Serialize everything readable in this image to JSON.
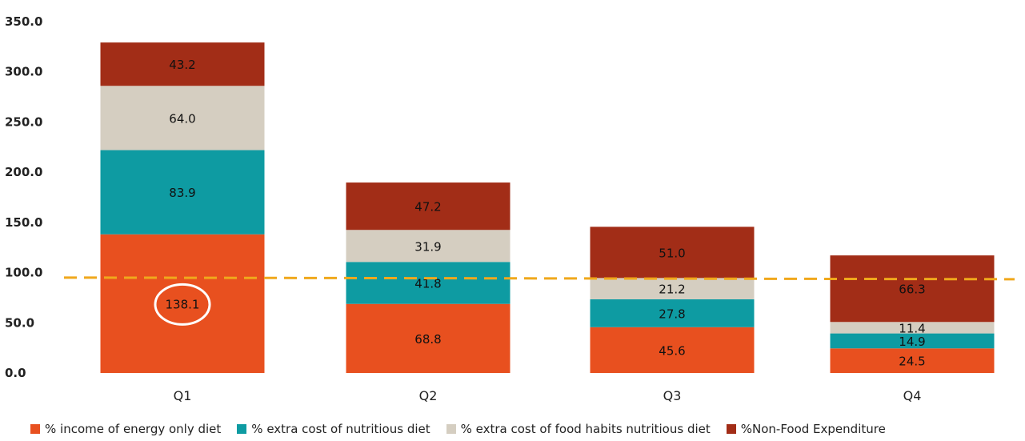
{
  "chart_data": {
    "type": "bar",
    "stacked": true,
    "categories": [
      "Q1",
      "Q2",
      "Q3",
      "Q4"
    ],
    "series": [
      {
        "name": "% income of energy only diet",
        "color": "#E8501F",
        "values": [
          138.1,
          68.8,
          45.6,
          24.5
        ],
        "labels": [
          "138.1",
          "68.8",
          "45.6",
          "24.5"
        ]
      },
      {
        "name": "% extra cost of nutritious diet",
        "color": "#0E9BA2",
        "values": [
          83.9,
          41.8,
          27.8,
          14.9
        ],
        "labels": [
          "83.9",
          "41.8",
          "27.8",
          "14.9"
        ]
      },
      {
        "name": "% extra cost of food habits nutritious diet",
        "color": "#D5CEC1",
        "values": [
          64.0,
          31.9,
          21.2,
          11.4
        ],
        "labels": [
          "64.0",
          "31.9",
          "21.2",
          "11.4"
        ]
      },
      {
        "name": "%Non-Food Expenditure",
        "color": "#A22D17",
        "values": [
          43.2,
          47.2,
          51.0,
          66.3
        ],
        "labels": [
          "43.2",
          "47.2",
          "51.0",
          "66.3"
        ]
      }
    ],
    "yticks": [
      "0.0",
      "50.0",
      "100.0",
      "150.0",
      "200.0",
      "250.0",
      "300.0",
      "350.0"
    ],
    "ylim": [
      0,
      350
    ],
    "reference_line": {
      "value": 95,
      "style": "dashed",
      "color": "#F0A81C"
    },
    "highlight": {
      "series": 0,
      "category": 0,
      "shape": "circle",
      "color": "#ffffff"
    },
    "grid": false,
    "legend_position": "bottom"
  }
}
